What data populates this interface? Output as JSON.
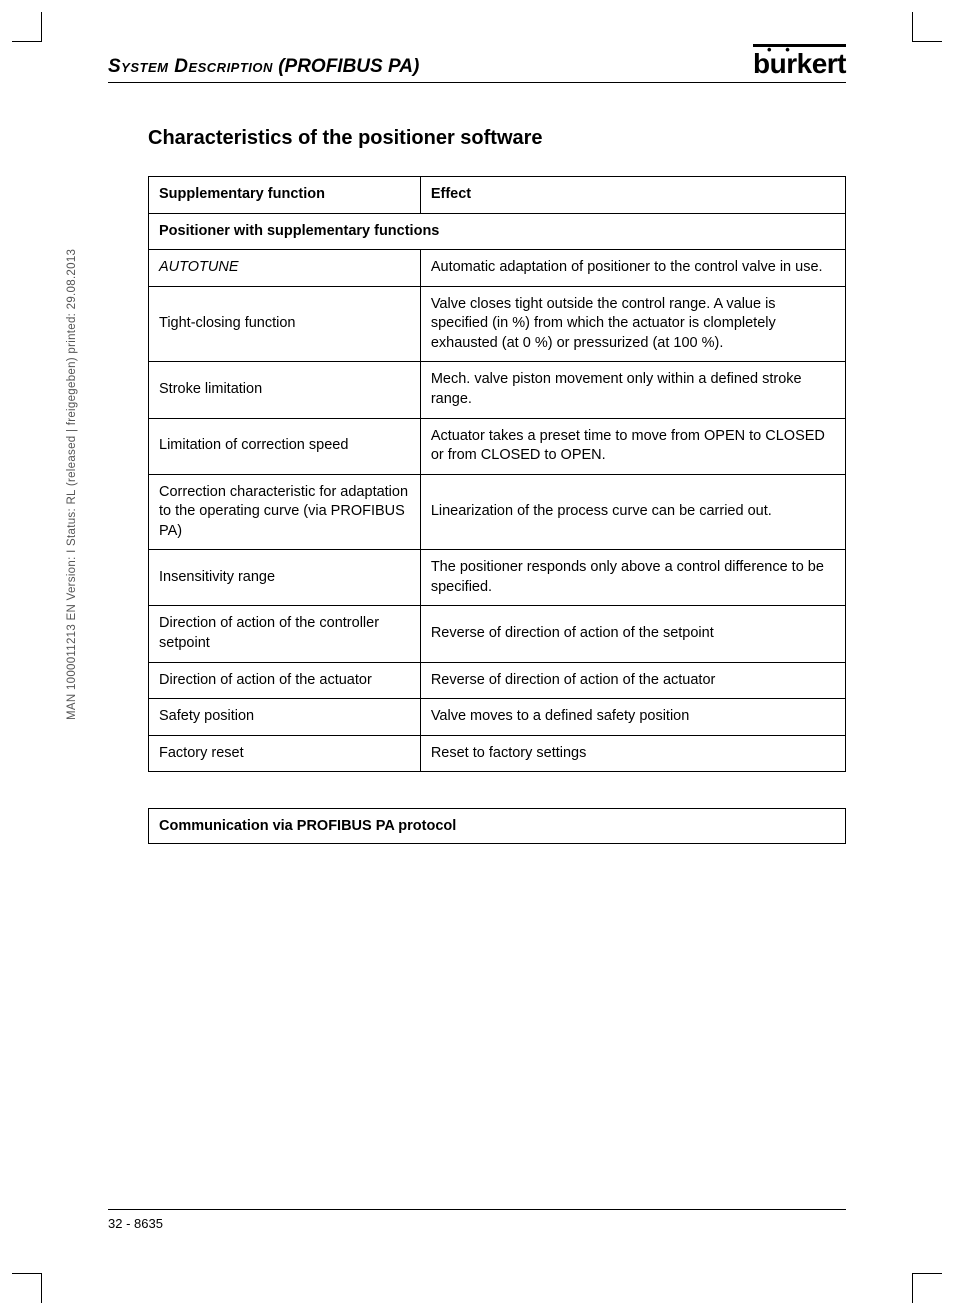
{
  "header": {
    "part1": "System Description",
    "part2": " (PROFIBUS PA)",
    "logo_text": "burkert"
  },
  "section_title": "Characteristics of the positioner software",
  "table": {
    "headers": [
      "Supplementary function",
      "Effect"
    ],
    "subheader": "Positioner with supplementary functions",
    "rows": [
      {
        "func": "AUTOTUNE",
        "func_italic": true,
        "effect": "Automatic adaptation of positioner to the control valve in use."
      },
      {
        "func": "Tight-closing function",
        "effect": "Valve closes tight outside the control range. A value is specified (in %) from which the actuator is clompletely exhausted (at 0 %) or pressurized (at 100 %)."
      },
      {
        "func": "Stroke limitation",
        "effect": "Mech. valve piston movement only within a defined stroke range."
      },
      {
        "func": "Limitation of correction speed",
        "effect": "Actuator takes a preset time to move from OPEN to CLOSED or from CLOSED to OPEN."
      },
      {
        "func": "Correction characteristic for adaptation to the operating curve (via PROFIBUS PA)",
        "effect": "Linearization of the process curve can be carried out."
      },
      {
        "func": "Insensitivity range",
        "effect": "The positioner responds only above a control difference to be specified."
      },
      {
        "func": "Direction of action of the controller setpoint",
        "effect": "Reverse of direction of action of the setpoint"
      },
      {
        "func": "Direction of action of the actuator",
        "effect": "Reverse of direction of action of the actuator"
      },
      {
        "func": "Safety position",
        "effect": "Valve moves to a defined safety position"
      },
      {
        "func": "Factory reset",
        "effect": "Reset to factory settings"
      }
    ]
  },
  "comm_box": "Communication via PROFIBUS PA protocol",
  "side_text": "MAN 1000011213 EN Version: I Status: RL (released | freigegeben) printed: 29.08.2013",
  "footer": "32  -  8635"
}
